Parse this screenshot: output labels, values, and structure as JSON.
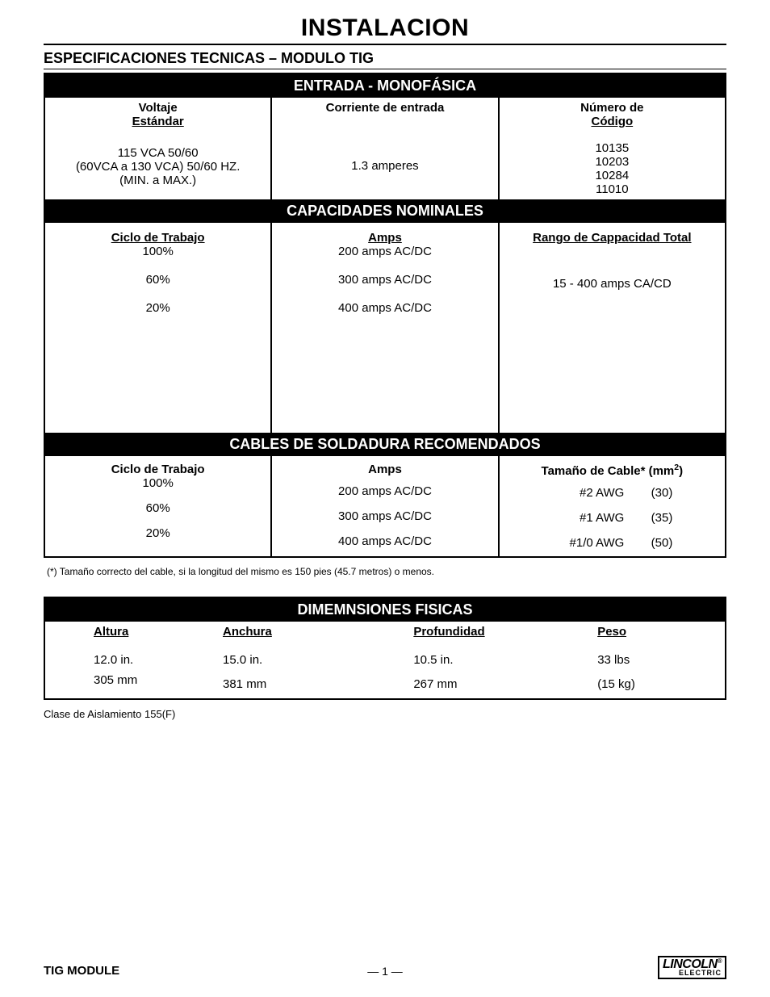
{
  "main_title": "INSTALACION",
  "subtitle": "ESPECIFICACIONES TECNICAS – MODULO TIG",
  "section_entrada": {
    "header": "ENTRADA - MONOFÁSICA",
    "cols": [
      "Voltaje\nEstándar",
      "Corriente de entrada",
      "Número de\nCódigo"
    ],
    "voltage_lines": [
      "115 VCA 50/60",
      "(60VCA a 130 VCA) 50/60 HZ.",
      "(MIN. a MAX.)"
    ],
    "current": "1.3 amperes",
    "codes": [
      "10135",
      "10203",
      "10284",
      "11010"
    ]
  },
  "section_capacidades": {
    "header": "CAPACIDADES NOMINALES",
    "col1_header": "Ciclo de Trabajo",
    "col2_header": "Amps",
    "col3_header": "Rango de Cappacidad Total",
    "duty": [
      "100%",
      "60%",
      "20%"
    ],
    "amps": [
      "200 amps AC/DC",
      "300 amps AC/DC",
      "400 amps AC/DC"
    ],
    "range": "15 - 400 amps CA/CD"
  },
  "section_cables": {
    "header": "CABLES DE SOLDADURA RECOMENDADOS",
    "col1_header": "Ciclo de Trabajo",
    "col2_header": "Amps",
    "col3_header_prefix": "Tamaño de Cable*  (mm",
    "col3_header_suffix": ")",
    "duty": [
      "100%",
      "60%",
      "20%"
    ],
    "amps": [
      "200 amps AC/DC",
      "300 amps AC/DC",
      "400 amps AC/DC"
    ],
    "sizes": [
      {
        "awg": "#2 AWG",
        "mm": "(30)"
      },
      {
        "awg": "#1 AWG",
        "mm": "(35)"
      },
      {
        "awg": "#1/0 AWG",
        "mm": "(50)"
      }
    ]
  },
  "footnote": "(*)   Tamaño correcto del cable, si la longitud del mismo es 150 pies (45.7 metros) o menos.",
  "section_dims": {
    "header": "DIMEMNSIONES FISICAS",
    "cols": [
      "Altura",
      "Anchura",
      "Profundidad",
      "Peso"
    ],
    "row1": [
      "12.0 in.",
      "15.0 in.",
      "10.5 in.",
      "33 lbs"
    ],
    "row2": [
      "305 mm",
      "381 mm",
      "267 mm",
      "(15 kg)"
    ]
  },
  "insulation": "Clase de Aislamiento  155(F)",
  "footer": {
    "left": "TIG MODULE",
    "center": "— 1 —",
    "logo_top": "LINCOLN",
    "logo_reg": "®",
    "logo_bot": "ELECTRIC"
  }
}
